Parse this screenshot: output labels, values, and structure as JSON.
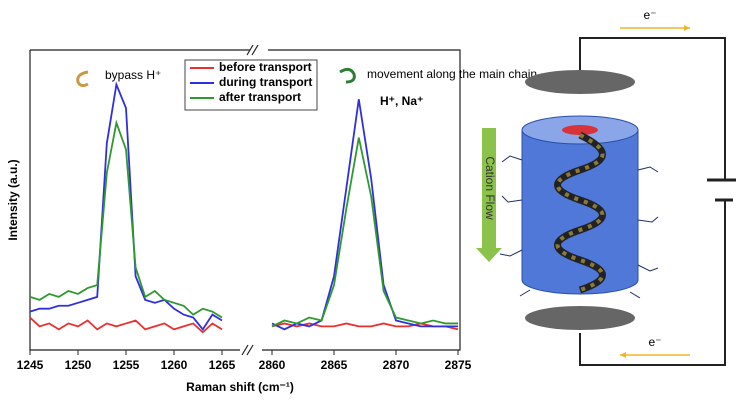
{
  "chart_data": {
    "type": "line",
    "x_label": "Raman shift (cm⁻¹)",
    "y_label": "Intensity (a.u.)",
    "annotations": [
      "bypass H⁺",
      "movement along the main chain",
      "H⁺, Na⁺"
    ],
    "x": [
      1245,
      1246,
      1247,
      1248,
      1249,
      1250,
      1251,
      1252,
      1253,
      1254,
      1255,
      1256,
      1257,
      1258,
      1259,
      1260,
      1261,
      1262,
      1263,
      1264,
      1265,
      2860,
      2861,
      2862,
      2863,
      2864,
      2865,
      2866,
      2867,
      2868,
      2869,
      2870,
      2871,
      2872,
      2873,
      2874,
      2875
    ],
    "xlim": [
      [
        1245,
        1265
      ],
      [
        2860,
        2875
      ]
    ],
    "xticks": [
      [
        1245,
        1250,
        1255,
        1260,
        1265
      ],
      [
        2860,
        2865,
        2870,
        2875
      ]
    ],
    "ylim": [
      0,
      100
    ],
    "series": [
      {
        "name": "before transport",
        "color": "#e8312f",
        "values": [
          11,
          8,
          9,
          7,
          9,
          8,
          10,
          7,
          9,
          8,
          9,
          10,
          7,
          8,
          9,
          7,
          8,
          9,
          6,
          9,
          7,
          8,
          9,
          8,
          9,
          8,
          8,
          9,
          8,
          8,
          9,
          8,
          8,
          9,
          8,
          8,
          7
        ]
      },
      {
        "name": "during transport",
        "color": "#2f2fe0",
        "values": [
          13,
          14,
          14,
          15,
          15,
          16,
          17,
          18,
          70,
          90,
          82,
          25,
          17,
          16,
          17,
          14,
          12,
          11,
          7,
          12,
          10,
          9,
          7,
          9,
          8,
          10,
          25,
          55,
          85,
          58,
          22,
          10,
          9,
          8,
          8,
          8,
          8
        ]
      },
      {
        "name": "after transport",
        "color": "#2e9a2e",
        "values": [
          18,
          17,
          19,
          18,
          20,
          19,
          21,
          22,
          60,
          77,
          68,
          28,
          18,
          20,
          17,
          16,
          15,
          12,
          14,
          13,
          11,
          8,
          10,
          9,
          11,
          10,
          22,
          48,
          72,
          52,
          20,
          11,
          10,
          9,
          10,
          9,
          9
        ]
      }
    ]
  },
  "diagram": {
    "top_label": "e⁻",
    "bottom_label": "e⁻",
    "arrow_label": "Cation Flow"
  }
}
